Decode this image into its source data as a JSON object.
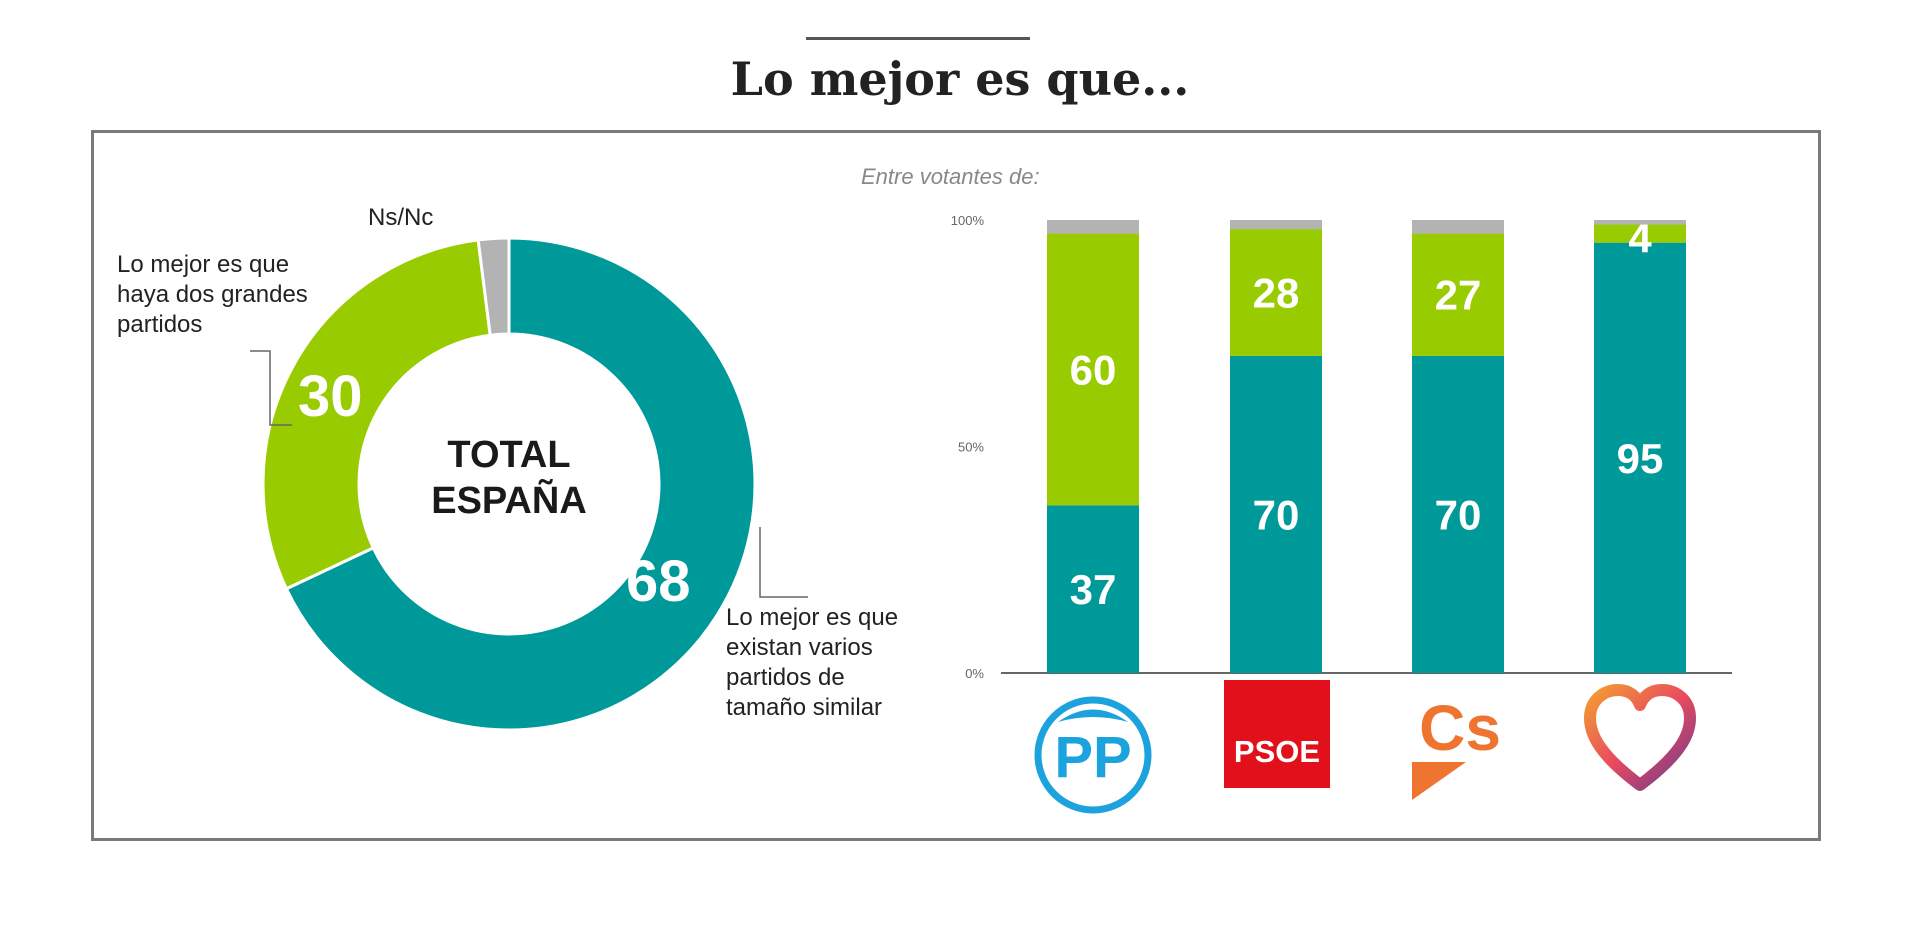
{
  "title": "Lo mejor es que...",
  "subtitle": "Entre votantes de:",
  "colors": {
    "teal": "#009999",
    "green": "#99cc00",
    "grey": "#b3b3b3"
  },
  "chart_data": [
    {
      "type": "pie",
      "center_label": [
        "TOTAL",
        "ESPAÑA"
      ],
      "slices": [
        {
          "label": "Lo mejor es que existan varios partidos de tamaño similar",
          "value": 68,
          "color": "#009999"
        },
        {
          "label": "Lo mejor es que haya dos grandes partidos",
          "value": 30,
          "color": "#99cc00"
        },
        {
          "label": "Ns/Nc",
          "value": 2,
          "color": "#b3b3b3"
        }
      ],
      "labels": {
        "ns": "Ns/Nc",
        "two_parties": [
          "Lo mejor es que",
          "haya dos grandes",
          "partidos"
        ],
        "several_parties": [
          "Lo mejor es que",
          "existan varios",
          "partidos de",
          "tamaño similar"
        ]
      }
    },
    {
      "type": "bar",
      "stacked": true,
      "categories": [
        "PP",
        "PSOE",
        "Cs",
        "Podemos"
      ],
      "yticks": [
        "100%",
        "50%",
        "0%"
      ],
      "ylim": [
        0,
        100
      ],
      "series": [
        {
          "values": [
            37,
            70,
            70,
            95
          ],
          "color": "#009999"
        },
        {
          "values": [
            60,
            28,
            27,
            4
          ],
          "color": "#99cc00"
        },
        {
          "values": [
            3,
            2,
            3,
            1
          ],
          "color": "#b3b3b3"
        }
      ],
      "logos": {
        "pp": "PP",
        "psoe": "PSOE",
        "cs": "Cs"
      }
    }
  ]
}
